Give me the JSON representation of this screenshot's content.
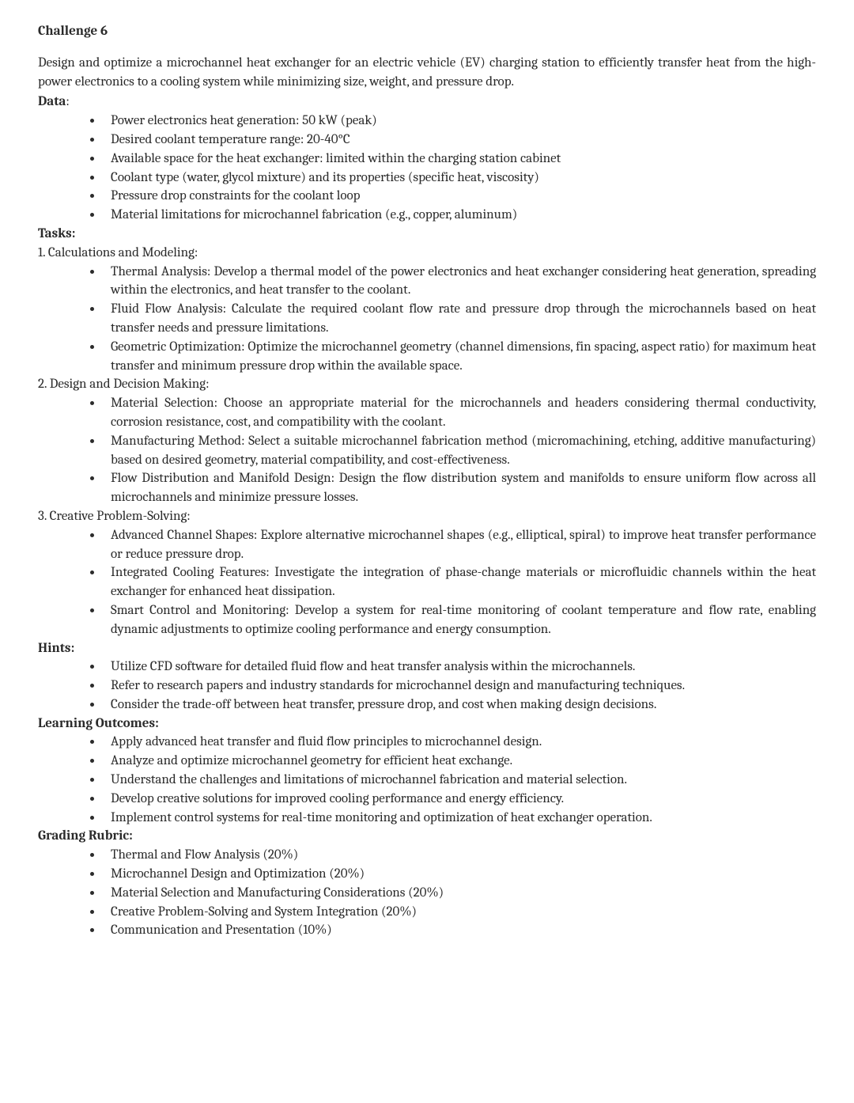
{
  "title": "Challenge 6",
  "intro": "Design and optimize a microchannel heat exchanger for an electric vehicle (EV) charging station to efficiently transfer heat from the high-power electronics to a cooling system while minimizing size, weight, and pressure drop.",
  "labels": {
    "data": "Data",
    "tasks": "Tasks:",
    "hints": "Hints:",
    "learning": "Learning Outcomes:",
    "grading": "Grading Rubric:"
  },
  "data_items": [
    "Power electronics heat generation: 50 kW (peak)",
    "Desired coolant temperature range: 20-40°C",
    "Available space for the heat exchanger: limited within the charging station cabinet",
    "Coolant type (water, glycol mixture) and its properties (specific heat, viscosity)",
    "Pressure drop constraints for the coolant loop",
    "Material limitations for microchannel fabrication (e.g., copper, aluminum)"
  ],
  "tasks": [
    {
      "heading": "1. Calculations and Modeling:",
      "items": [
        "Thermal Analysis: Develop a thermal model of the power electronics and heat exchanger considering heat generation, spreading within the electronics, and heat transfer to the coolant.",
        "Fluid Flow Analysis: Calculate the required coolant flow rate and pressure drop through the microchannels based on heat transfer needs and pressure limitations.",
        "Geometric Optimization: Optimize the microchannel geometry (channel dimensions, fin spacing, aspect ratio) for maximum heat transfer and minimum pressure drop within the available space."
      ]
    },
    {
      "heading": "2. Design and Decision Making:",
      "items": [
        "Material Selection: Choose an appropriate material for the microchannels and headers considering thermal conductivity, corrosion resistance, cost, and compatibility with the coolant.",
        "Manufacturing Method: Select a suitable microchannel fabrication method (micromachining, etching, additive manufacturing) based on desired geometry, material compatibility, and cost-effectiveness.",
        "Flow Distribution and Manifold Design: Design the flow distribution system and manifolds to ensure uniform flow across all microchannels and minimize pressure losses."
      ]
    },
    {
      "heading": "3. Creative Problem-Solving:",
      "items": [
        "Advanced Channel Shapes: Explore alternative microchannel shapes (e.g., elliptical, spiral) to improve heat transfer performance or reduce pressure drop.",
        "Integrated Cooling Features: Investigate the integration of phase-change materials or microfluidic channels within the heat exchanger for enhanced heat dissipation.",
        "Smart Control and Monitoring: Develop a system for real-time monitoring of coolant temperature and flow rate, enabling dynamic adjustments to optimize cooling performance and energy consumption."
      ]
    }
  ],
  "hints": [
    "Utilize CFD software for detailed fluid flow and heat transfer analysis within the microchannels.",
    "Refer to research papers and industry standards for microchannel design and manufacturing techniques.",
    "Consider the trade-off between heat transfer, pressure drop, and cost when making design decisions."
  ],
  "learning": [
    "Apply advanced heat transfer and fluid flow principles to microchannel design.",
    "Analyze and optimize microchannel geometry for efficient heat exchange.",
    "Understand the challenges and limitations of microchannel fabrication and material selection.",
    "Develop creative solutions for improved cooling performance and energy efficiency.",
    "Implement control systems for real-time monitoring and optimization of heat exchanger operation."
  ],
  "grading": [
    "Thermal and Flow Analysis (20%)",
    "Microchannel Design and Optimization (20%)",
    "Material Selection and Manufacturing Considerations (20%)",
    "Creative Problem-Solving and System Integration (20%)",
    "Communication and Presentation (10%)"
  ]
}
